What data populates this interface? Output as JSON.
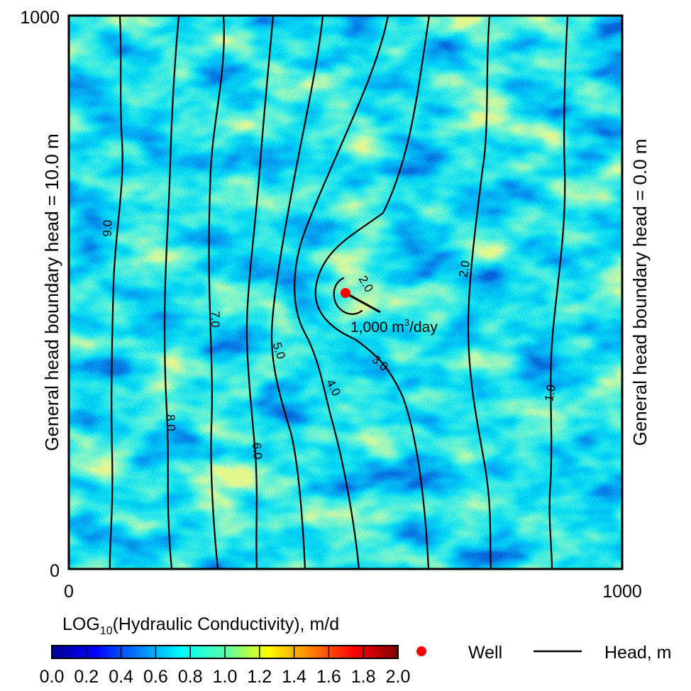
{
  "axes": {
    "y_top": "1000",
    "y_bottom": "0",
    "x_left": "0",
    "x_right": "1000",
    "x_range": [
      0,
      1000
    ],
    "y_range": [
      0,
      1000
    ]
  },
  "boundaries": {
    "left": "General head boundary head = 10.0 m",
    "right": "General head boundary head = 0.0 m"
  },
  "well": {
    "rate_prefix": "1,000 m",
    "rate_sup": "3",
    "rate_suffix": "/day",
    "x": 500,
    "y": 500,
    "color": "#ff0000"
  },
  "contours": {
    "labels": [
      "9.0",
      "8.0",
      "7.0",
      "6.0",
      "5.0",
      "4.0",
      "3.0",
      "2.0",
      "2.0",
      "1.0"
    ]
  },
  "colorbar": {
    "title": "LOG",
    "title_sub": "10",
    "title_rest": "(Hydraulic Conductivity), m/d",
    "ticks": [
      "0.0",
      "0.2",
      "0.4",
      "0.6",
      "0.8",
      "1.0",
      "1.2",
      "1.4",
      "1.6",
      "1.8",
      "2.0"
    ],
    "range": [
      0.0,
      2.0
    ],
    "colormap": "jet"
  },
  "legend": {
    "well_label": "Well",
    "head_label": "Head, m",
    "well_color": "#ff0000",
    "head_color": "#000000"
  },
  "colors": {
    "background_field": "#3fc9e6",
    "low_k": "#1a3fd0",
    "high_k": "#c8f060"
  }
}
